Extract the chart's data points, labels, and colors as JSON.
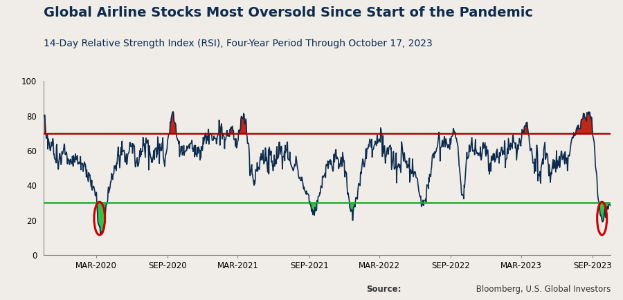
{
  "title": "Global Airline Stocks Most Oversold Since Start of the Pandemic",
  "subtitle": "14-Day Relative Strength Index (RSI), Four-Year Period Through October 17, 2023",
  "source_bold": "Source:",
  "source_rest": " Bloomberg, U.S. Global Investors",
  "overbought_level": 70,
  "oversold_level": 30,
  "ylim": [
    0,
    100
  ],
  "yticks": [
    0,
    20,
    40,
    60,
    80,
    100
  ],
  "line_color": "#0d2b4e",
  "overbought_color": "#aa0000",
  "oversold_color": "#22aa33",
  "fill_below_color": "#22bb33",
  "fill_above_color": "#bb1100",
  "circle_color": "#cc0000",
  "background_color": "#f0ede8",
  "title_color": "#0d2b4e",
  "subtitle_color": "#0d2b4e",
  "title_fontsize": 14,
  "subtitle_fontsize": 10,
  "tick_label_fontsize": 8.5,
  "source_fontsize": 8.5,
  "line_width": 1.2,
  "xtick_labels": [
    "MAR-2020",
    "SEP-2020",
    "MAR-2021",
    "SEP-2021",
    "MAR-2022",
    "SEP-2022",
    "MAR-2023",
    "SEP-2023"
  ]
}
